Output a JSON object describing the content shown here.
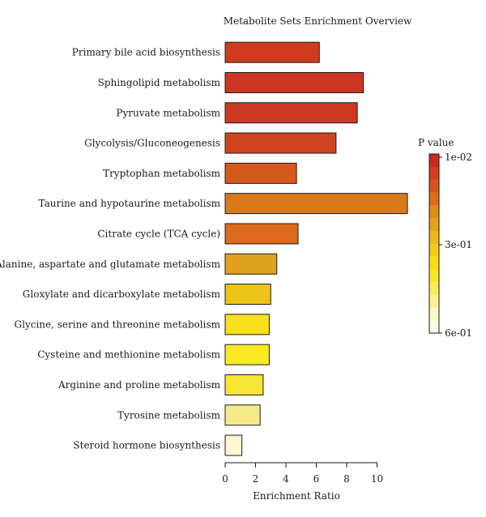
{
  "chart_data": {
    "type": "bar",
    "orientation": "horizontal",
    "title": "Metabolite Sets Enrichment Overview",
    "xlabel": "Enrichment Ratio",
    "xlim": [
      0,
      12
    ],
    "xticks": [
      0,
      2,
      4,
      6,
      8,
      10
    ],
    "categories": [
      "Primary bile acid biosynthesis",
      "Sphingolipid metabolism",
      "Pyruvate metabolism",
      "Glycolysis/Gluconeogenesis",
      "Tryptophan metabolism",
      "Taurine and hypotaurine metabolism",
      "Citrate cycle (TCA cycle)",
      "Alanine, aspartate and glutamate metabolism",
      "Gloxylate and dicarboxylate metabolism",
      "Glycine, serine and threonine metabolism",
      "Cysteine and methionine metabolism",
      "Arginine and proline metabolism",
      "Tyrosine metabolism",
      "Steroid hormone biosynthesis"
    ],
    "values": [
      6.2,
      9.1,
      8.7,
      7.3,
      4.7,
      12.0,
      4.8,
      3.4,
      3.0,
      2.9,
      2.9,
      2.5,
      2.3,
      1.1
    ],
    "colors": [
      "#d03a1f",
      "#cc3522",
      "#cd3822",
      "#d0431f",
      "#d45a1c",
      "#d87a1c",
      "#db6a1a",
      "#e0a21e",
      "#ecc418",
      "#f8e01c",
      "#faea24",
      "#f7e634",
      "#f6e98a",
      "#fcf6d2"
    ],
    "legend": {
      "title": "P value",
      "labels": [
        "1e-02",
        "3e-01",
        "6e-01"
      ],
      "gradient": [
        "#c82c1d",
        "#d0401e",
        "#d6561c",
        "#dc6c1b",
        "#e08a1b",
        "#e3a01c",
        "#eab81c",
        "#f2cc1a",
        "#f8dc18",
        "#fbe62a",
        "#fbec5a",
        "#fcf294",
        "#fdf8c8",
        "#fdfbe6"
      ]
    }
  }
}
